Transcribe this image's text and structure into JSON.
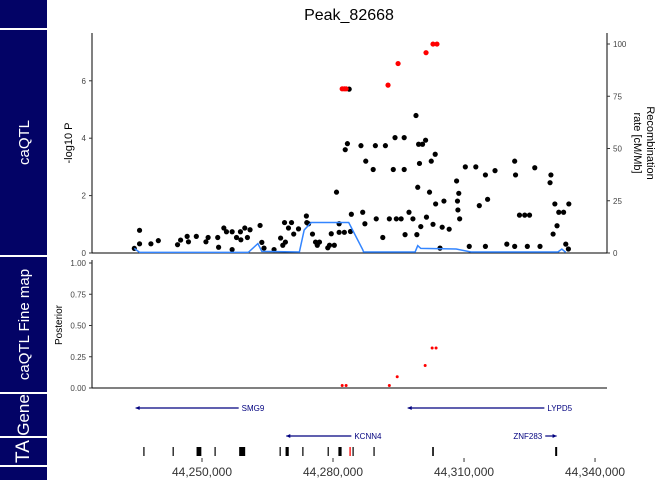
{
  "strips": [
    {
      "label": ""
    },
    {
      "label": "caQTL"
    },
    {
      "label": "caQTL Fine map"
    },
    {
      "label": "Gene"
    },
    {
      "label": "TA"
    },
    {
      "label": ""
    }
  ],
  "colors": {
    "strip": "#030366",
    "lead": "#ff0000",
    "snp": "#000000",
    "recomb": "#3385ff",
    "gene": "#00007f"
  },
  "chart_data": [
    {
      "type": "scatter",
      "title": "Peak_82668",
      "ylabel": "-log10 P",
      "y2label_1": "Recombination",
      "y2label_2": "rate [cM/Mb]",
      "x_unit": "kb",
      "xlim": [
        44225,
        44343
      ],
      "ylim": [
        0,
        7.6
      ],
      "y2lim": [
        0,
        105
      ],
      "yticks": [
        "0",
        "2",
        "4",
        "6"
      ],
      "y2ticks": [
        "0",
        "25",
        "50",
        "75",
        "100"
      ],
      "lead_points": [
        [
          44282.1,
          5.72
        ],
        [
          44282.6,
          5.72
        ],
        [
          44283.0,
          5.72
        ],
        [
          44292.6,
          5.85
        ],
        [
          44294.9,
          6.6
        ],
        [
          44301.3,
          6.98
        ],
        [
          44302.9,
          7.28
        ],
        [
          44303.8,
          7.28
        ]
      ],
      "points": [
        [
          44234.5,
          0.16
        ],
        [
          44235.7,
          0.79
        ],
        [
          44235.7,
          0.32
        ],
        [
          44238.3,
          0.32
        ],
        [
          44240.0,
          0.43
        ],
        [
          44244.4,
          0.29
        ],
        [
          44245.1,
          0.45
        ],
        [
          44246.6,
          0.58
        ],
        [
          44246.9,
          0.39
        ],
        [
          44248.7,
          0.58
        ],
        [
          44250.9,
          0.39
        ],
        [
          44251.4,
          0.54
        ],
        [
          44253.6,
          0.54
        ],
        [
          44253.8,
          0.2
        ],
        [
          44255.0,
          0.87
        ],
        [
          44255.6,
          0.74
        ],
        [
          44256.9,
          0.74
        ],
        [
          44256.9,
          0.12
        ],
        [
          44257.9,
          0.54
        ],
        [
          44258.8,
          0.74
        ],
        [
          44258.9,
          0.46
        ],
        [
          44259.8,
          0.87
        ],
        [
          44260.4,
          0.54
        ],
        [
          44261.0,
          0.81
        ],
        [
          44263.3,
          0.96
        ],
        [
          44263.7,
          0.37
        ],
        [
          44264.2,
          0.17
        ],
        [
          44266.5,
          0.12
        ],
        [
          44268.0,
          0.52
        ],
        [
          44268.5,
          0.27
        ],
        [
          44268.9,
          1.06
        ],
        [
          44269.1,
          0.38
        ],
        [
          44269.8,
          0.87
        ],
        [
          44270.5,
          1.06
        ],
        [
          44271.0,
          0.66
        ],
        [
          44272.1,
          0.84
        ],
        [
          44273.9,
          1.29
        ],
        [
          44274.0,
          1.06
        ],
        [
          44274.4,
          1.02
        ],
        [
          44275.3,
          0.66
        ],
        [
          44276.0,
          0.38
        ],
        [
          44276.4,
          0.27
        ],
        [
          44276.9,
          0.38
        ],
        [
          44278.8,
          0.18
        ],
        [
          44279.2,
          0.27
        ],
        [
          44279.6,
          0.67
        ],
        [
          44280.3,
          0.27
        ],
        [
          44280.8,
          2.12
        ],
        [
          44281.4,
          1.02
        ],
        [
          44281.4,
          0.72
        ],
        [
          44282.6,
          0.72
        ],
        [
          44282.8,
          3.6
        ],
        [
          44283.3,
          3.81
        ],
        [
          44283.7,
          5.71
        ],
        [
          44284.0,
          0.75
        ],
        [
          44284.2,
          1.35
        ],
        [
          44286.4,
          3.74
        ],
        [
          44286.8,
          1.42
        ],
        [
          44287.3,
          1.02
        ],
        [
          44287.5,
          3.2
        ],
        [
          44289.2,
          2.91
        ],
        [
          44289.7,
          3.74
        ],
        [
          44289.9,
          1.19
        ],
        [
          44291.4,
          0.54
        ],
        [
          44292.0,
          3.74
        ],
        [
          44292.9,
          1.19
        ],
        [
          44293.8,
          2.91
        ],
        [
          44294.2,
          4.02
        ],
        [
          44294.5,
          1.19
        ],
        [
          44295.6,
          1.19
        ],
        [
          44296.3,
          2.91
        ],
        [
          44296.3,
          4.02
        ],
        [
          44296.5,
          0.64
        ],
        [
          44297.4,
          1.42
        ],
        [
          44298.3,
          1.19
        ],
        [
          44299.0,
          4.79
        ],
        [
          44299.2,
          0.64
        ],
        [
          44299.4,
          2.29
        ],
        [
          44299.6,
          3.79
        ],
        [
          44299.8,
          3.12
        ],
        [
          44300.1,
          0.92
        ],
        [
          44300.5,
          3.79
        ],
        [
          44301.2,
          3.93
        ],
        [
          44301.4,
          1.25
        ],
        [
          44302.1,
          2.12
        ],
        [
          44302.5,
          3.2
        ],
        [
          44302.9,
          1.0
        ],
        [
          44303.4,
          3.44
        ],
        [
          44303.5,
          1.71
        ],
        [
          44304.5,
          0.17
        ],
        [
          44305.0,
          0.9
        ],
        [
          44305.4,
          1.81
        ],
        [
          44306.6,
          0.83
        ],
        [
          44308.3,
          2.51
        ],
        [
          44308.5,
          1.81
        ],
        [
          44308.6,
          1.5
        ],
        [
          44308.8,
          2.08
        ],
        [
          44309.0,
          1.19
        ],
        [
          44310.3,
          3.0
        ],
        [
          44311.2,
          0.23
        ],
        [
          44312.7,
          3.0
        ],
        [
          44313.5,
          1.65
        ],
        [
          44314.9,
          2.72
        ],
        [
          44314.9,
          0.23
        ],
        [
          44315.4,
          1.87
        ],
        [
          44317.1,
          2.87
        ],
        [
          44319.8,
          0.31
        ],
        [
          44321.6,
          3.2
        ],
        [
          44321.6,
          0.23
        ],
        [
          44321.8,
          2.72
        ],
        [
          44322.7,
          1.32
        ],
        [
          44323.9,
          1.32
        ],
        [
          44324.5,
          0.23
        ],
        [
          44325.0,
          1.32
        ],
        [
          44326.2,
          2.97
        ],
        [
          44327.4,
          0.23
        ],
        [
          44329.7,
          2.45
        ],
        [
          44329.9,
          2.72
        ],
        [
          44330.4,
          0.66
        ],
        [
          44330.8,
          1.71
        ],
        [
          44331.3,
          0.95
        ],
        [
          44331.7,
          1.42
        ],
        [
          44332.8,
          1.42
        ],
        [
          44333.3,
          0.31
        ],
        [
          44333.9,
          0.14
        ],
        [
          44334.0,
          1.71
        ]
      ],
      "recombination": [
        [
          44234.5,
          2.2
        ],
        [
          44235.7,
          0.3
        ],
        [
          44260.6,
          0.3
        ],
        [
          44262.8,
          4.5
        ],
        [
          44263.7,
          0.8
        ],
        [
          44272.3,
          0.5
        ],
        [
          44273.4,
          11
        ],
        [
          44275.0,
          14.6
        ],
        [
          44283.6,
          14.6
        ],
        [
          44286.8,
          1.6
        ],
        [
          44287.0,
          0.5
        ],
        [
          44298.8,
          0.5
        ],
        [
          44299.4,
          3.5
        ],
        [
          44300.1,
          2.2
        ],
        [
          44308.2,
          1.9
        ],
        [
          44311.6,
          0.5
        ],
        [
          44331.5,
          0.5
        ],
        [
          44332.4,
          1.9
        ],
        [
          44333.3,
          0.3
        ]
      ]
    },
    {
      "type": "scatter",
      "ylabel": "Posterior",
      "ylim": [
        0,
        1
      ],
      "yticks": [
        "0.00",
        "0.25",
        "0.50",
        "0.75",
        "1.00"
      ],
      "points": [
        [
          44282.1,
          0.02
        ],
        [
          44283.0,
          0.02
        ],
        [
          44292.9,
          0.02
        ],
        [
          44294.7,
          0.09
        ],
        [
          44301.1,
          0.18
        ],
        [
          44302.7,
          0.32
        ],
        [
          44303.6,
          0.32
        ]
      ]
    },
    {
      "type": "gene_track",
      "genes": [
        {
          "name": "SMG9",
          "start": 44234.8,
          "end": 44258.4,
          "strand": "-",
          "row": 0
        },
        {
          "name": "LYPD5",
          "start": 44297.1,
          "end": 44328.4,
          "strand": "-",
          "row": 0
        },
        {
          "name": "KCNN4",
          "start": 44269.3,
          "end": 44284.2,
          "strand": "-",
          "row": 1
        },
        {
          "name": "ZNF283",
          "start": 44328.6,
          "end": 44331.2,
          "strand": "+",
          "row": 1
        }
      ]
    },
    {
      "type": "peak_track",
      "peaks": [
        [
          44236.7,
          0.3
        ],
        [
          44243.4,
          0.3
        ],
        [
          44249.3,
          1.2
        ],
        [
          44253.0,
          0.3
        ],
        [
          44259.2,
          1.5
        ],
        [
          44267.9,
          0.3
        ],
        [
          44269.5,
          0.8
        ],
        [
          44273.1,
          0.3
        ],
        [
          44278.9,
          0.3
        ],
        [
          44281.6,
          0.8
        ],
        [
          44284.6,
          0.3
        ],
        [
          44289.4,
          0.3
        ],
        [
          44302.9,
          0.4
        ],
        [
          44331.1,
          0.5
        ]
      ],
      "highlight": [
        44283.9
      ],
      "xticks": [
        {
          "kb": 44250,
          "label": "44,250,000"
        },
        {
          "kb": 44280,
          "label": "44,280,000"
        },
        {
          "kb": 44310,
          "label": "44,310,000"
        },
        {
          "kb": 44340,
          "label": "44,340,000"
        }
      ]
    }
  ]
}
